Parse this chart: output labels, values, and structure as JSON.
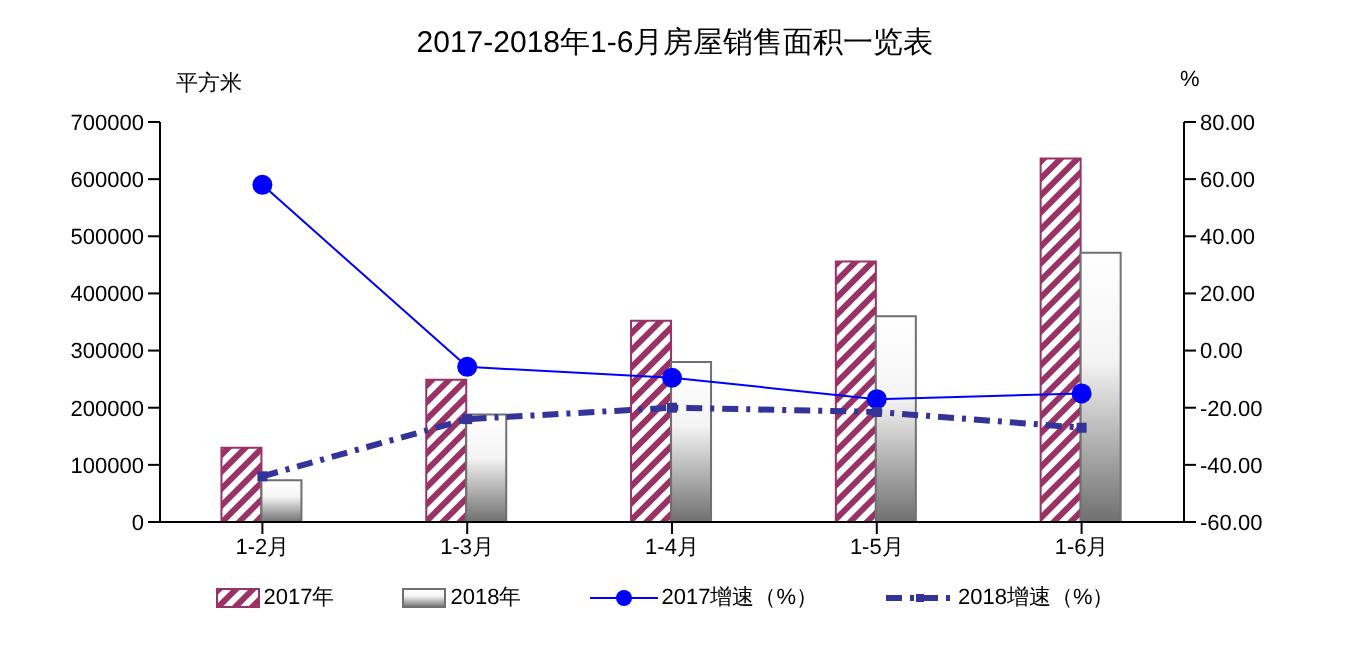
{
  "chart_data": {
    "type": "bar",
    "title": "2017-2018年1-6月房屋销售面积一览表",
    "ylabel": "平方米",
    "y2label": "%",
    "categories": [
      "1-2月",
      "1-3月",
      "1-4月",
      "1-5月",
      "1-6月"
    ],
    "series": [
      {
        "name": "2017年",
        "color": "#993366",
        "values": [
          130000,
          249000,
          352000,
          456000,
          636000
        ]
      },
      {
        "name": "2018年",
        "color": "#707070",
        "values": [
          73000,
          188000,
          280000,
          360000,
          471000
        ]
      },
      {
        "name": "2017增速（%）",
        "type": "line",
        "axis": "y2",
        "color": "#0000ff",
        "marker": "circle",
        "line_style": "solid",
        "values": [
          58,
          -5.7,
          -9.5,
          -17,
          -15
        ]
      },
      {
        "name": "2018增速（%）",
        "type": "line",
        "axis": "y2",
        "color": "#333399",
        "marker": "square",
        "line_style": "dashed",
        "values": [
          -44,
          -24,
          -20,
          -21.5,
          -27
        ]
      }
    ],
    "ylim": [
      0,
      700000
    ],
    "yticks": [
      0,
      100000,
      200000,
      300000,
      400000,
      500000,
      600000,
      700000
    ],
    "y2lim": [
      -60,
      80
    ],
    "y2ticks": [
      {
        "value": -60,
        "label": "-60.00"
      },
      {
        "value": -40,
        "label": "-40.00"
      },
      {
        "value": -20,
        "label": "-20.00"
      },
      {
        "value": 0,
        "label": "0.00"
      },
      {
        "value": 20,
        "label": "20.00"
      },
      {
        "value": 40,
        "label": "40.00"
      },
      {
        "value": 60,
        "label": "60.00"
      },
      {
        "value": 80,
        "label": "80.00"
      }
    ],
    "grid": false,
    "legend": "bottom"
  }
}
